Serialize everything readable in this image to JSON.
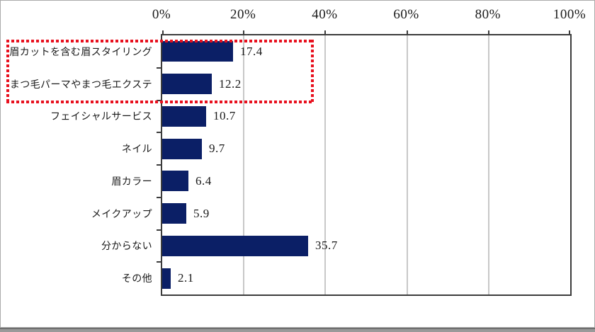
{
  "window": {
    "background": "#ffffff",
    "border_color": "#ababab",
    "bottom_edge_color": "#7f7f7f"
  },
  "chart_data": {
    "type": "bar",
    "orientation": "horizontal",
    "title": "",
    "categories": [
      "眉カットを含む眉スタイリング",
      "まつ毛パーマやまつ毛エクステ",
      "フェイシャルサービス",
      "ネイル",
      "眉カラー",
      "メイクアップ",
      "分からない",
      "その他"
    ],
    "values": [
      17.4,
      12.2,
      10.7,
      9.7,
      6.4,
      5.9,
      35.7,
      2.1
    ],
    "data_labels": [
      "17.4",
      "12.2",
      "10.7",
      "9.7",
      "6.4",
      "5.9",
      "35.7",
      "2.1"
    ],
    "x_axis": {
      "position": "top",
      "min": 0,
      "max": 100,
      "tick_interval": 20,
      "tick_labels": [
        "0%",
        "20%",
        "40%",
        "60%",
        "80%",
        "100%"
      ]
    },
    "grid": true,
    "legend": false,
    "colors": {
      "bar": "#0b1f66",
      "gridline": "#c8c8c8",
      "axis": "#3c3c3c",
      "text": "#1a1a1a",
      "highlight": "#e8101e"
    },
    "annotation": {
      "type": "dotted-rectangle-highlight",
      "color": "#e8101e",
      "highlighted_categories": [
        "眉カットを含む眉スタイリング",
        "まつ毛パーマやまつ毛エクステ"
      ]
    }
  }
}
